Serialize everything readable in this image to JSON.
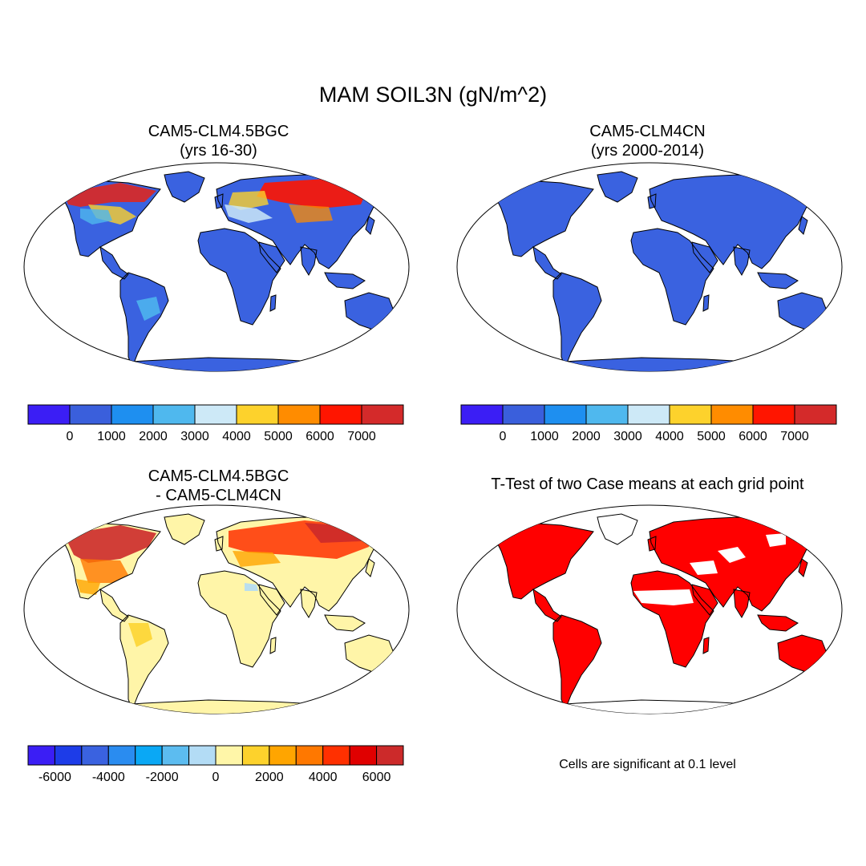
{
  "figure": {
    "title": "MAM SOIL3N (gN/m^2)",
    "colors": {
      "ocean": "#ffffff",
      "coast": "#000000",
      "significant": "#ff0000"
    }
  },
  "panels": [
    {
      "id": "case1",
      "title_line1": "CAM5-CLM4.5BGC",
      "title_line2": "(yrs 16-30)",
      "base_fill": "#3a62e0"
    },
    {
      "id": "case2",
      "title_line1": "CAM5-CLM4CN",
      "title_line2": "(yrs 2000-2014)",
      "base_fill": "#3a62e0"
    },
    {
      "id": "diff",
      "title_line1": "CAM5-CLM4.5BGC",
      "title_line2": "- CAM5-CLM4CN",
      "base_fill": "#fff5a8"
    },
    {
      "id": "ttest",
      "title_line1": "T-Test of two Case means at each grid point",
      "title_line2": "",
      "base_fill": "#ff0000"
    }
  ],
  "colorbars": {
    "absolute": {
      "colors": [
        "#3b1ef5",
        "#3a5fdc",
        "#1e8ff0",
        "#4fb8ee",
        "#cde9f7",
        "#fdd22c",
        "#ff8c00",
        "#ff1500",
        "#d42a2a"
      ],
      "labels": [
        "0",
        "1000",
        "2000",
        "3000",
        "4000",
        "5000",
        "6000",
        "7000"
      ]
    },
    "difference": {
      "colors": [
        "#3b1ef5",
        "#1d3ce8",
        "#3a62e0",
        "#2a8cf0",
        "#0aa8f5",
        "#5cbcf0",
        "#b3dcf5",
        "#fff6a8",
        "#fdd22c",
        "#ffa500",
        "#ff7800",
        "#ff3000",
        "#e00000",
        "#cc2a2a"
      ],
      "labels": [
        "-6000",
        "-4000",
        "-2000",
        "0",
        "2000",
        "4000",
        "6000"
      ]
    }
  },
  "note": "Cells are significant at 0.1 level"
}
